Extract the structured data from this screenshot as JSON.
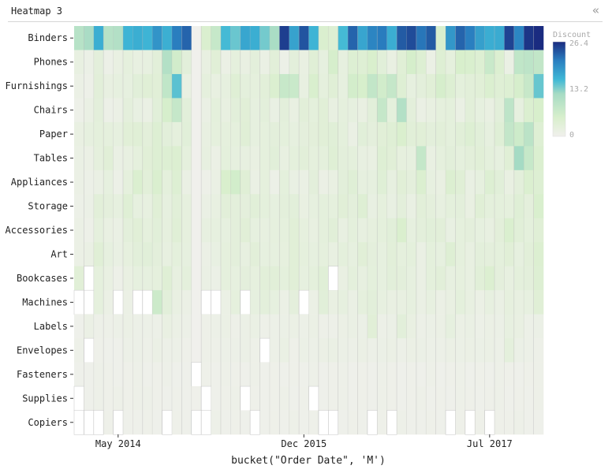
{
  "panel": {
    "title": "Heatmap 3",
    "collapse_icon": "double-chevron-left-icon"
  },
  "chart_data": {
    "type": "heatmap",
    "title": "",
    "xlabel": "bucket(\"Order Date\", 'M')",
    "ylabel": "",
    "y_categories": [
      "Binders",
      "Phones",
      "Furnishings",
      "Chairs",
      "Paper",
      "Tables",
      "Appliances",
      "Storage",
      "Accessories",
      "Art",
      "Bookcases",
      "Machines",
      "Labels",
      "Envelopes",
      "Fasteners",
      "Supplies",
      "Copiers"
    ],
    "x_start": "2014-01",
    "x_end": "2017-12",
    "x_ticks": [
      {
        "label": "May 2014",
        "month": "2014-05"
      },
      {
        "label": "Dec 2015",
        "month": "2015-12"
      },
      {
        "label": "Jul 2017",
        "month": "2017-07"
      }
    ],
    "legend": {
      "title": "Discount",
      "min": 0,
      "mid": 13.2,
      "max": 26.4,
      "tick_labels": [
        "26.4",
        "13.2",
        "0"
      ]
    },
    "colors": {
      "low": "#f0f0ec",
      "mid": "#3fb8d6",
      "high": "#1a2b80",
      "missing": "#ffffff"
    },
    "values": [
      [
        9.6,
        11.4,
        16.8,
        9.6,
        10.1,
        16.2,
        16.8,
        16.2,
        19.2,
        16.7,
        21.2,
        22.8,
        0,
        4.8,
        7.6,
        15.6,
        14.2,
        17.5,
        16.8,
        13.8,
        11.3,
        25.2,
        17.9,
        23.8,
        16.2,
        4.8,
        4.2,
        15.6,
        22.8,
        17.6,
        20.6,
        21.3,
        16.9,
        23.4,
        24.3,
        21.7,
        23.4,
        5.0,
        18.9,
        22.8,
        21.1,
        18.2,
        16.9,
        17.0,
        24.9,
        20.5,
        25.8,
        26.4
      ],
      [
        1.8,
        1.0,
        2.8,
        0.8,
        1.6,
        2.4,
        1.8,
        2.0,
        3.1,
        10.1,
        6.2,
        3.0,
        0,
        1.8,
        3.4,
        1.2,
        2.4,
        1.6,
        2.8,
        1.4,
        3.1,
        0.8,
        2.8,
        1.6,
        3.6,
        2.2,
        5.6,
        2.1,
        4.2,
        3.9,
        5.1,
        3.2,
        1.6,
        3.6,
        5.7,
        4.2,
        1.2,
        3.9,
        2.4,
        5.2,
        5.0,
        4.1,
        7.3,
        4.5,
        1.4,
        8.4,
        8.9,
        8.2
      ],
      [
        1.2,
        0.6,
        3.1,
        1.8,
        2.2,
        2.2,
        3.2,
        3.6,
        3.4,
        8.4,
        14.8,
        1.6,
        0,
        2.4,
        1.8,
        2.2,
        3.8,
        2.6,
        2.4,
        3.1,
        4.6,
        7.5,
        7.2,
        1.8,
        5.0,
        2.4,
        3.6,
        2.1,
        5.9,
        5.4,
        8.2,
        6.2,
        7.8,
        3.9,
        2.2,
        2.8,
        3.4,
        5.6,
        4.1,
        2.6,
        3.1,
        3.4,
        4.7,
        3.8,
        4.2,
        5.5,
        7.5,
        14.3
      ],
      [
        0.6,
        1.4,
        2.8,
        0.9,
        1.2,
        2.7,
        1.7,
        1.4,
        3.2,
        5.6,
        7.8,
        3.0,
        0,
        1.4,
        2.6,
        1.8,
        3.0,
        3.4,
        2.2,
        2.8,
        1.5,
        2.8,
        1.6,
        3.1,
        2.6,
        3.4,
        1.8,
        2.4,
        2.2,
        1.6,
        3.0,
        7.8,
        2.6,
        10.1,
        2.8,
        1.4,
        1.8,
        2.4,
        2.6,
        1.4,
        3.1,
        2.2,
        1.6,
        3.0,
        8.9,
        2.2,
        4.6,
        5.2
      ],
      [
        1.6,
        2.1,
        2.6,
        2.5,
        2.2,
        3.4,
        3.6,
        2.9,
        4.1,
        3.0,
        2.4,
        3.2,
        0,
        1.8,
        2.5,
        2.5,
        2.4,
        3.6,
        2.1,
        2.4,
        2.8,
        2.6,
        2.2,
        2.7,
        2.9,
        3.4,
        3.5,
        2.6,
        1.4,
        3.2,
        2.7,
        3.4,
        3.8,
        4.9,
        3.3,
        3.4,
        2.8,
        3.1,
        2.6,
        3.3,
        4.2,
        3.2,
        2.1,
        3.7,
        8.1,
        6.7,
        9.1,
        4.0
      ],
      [
        1.4,
        1.1,
        2.4,
        3.4,
        1.4,
        1.8,
        2.4,
        3.4,
        4.2,
        4.1,
        4.4,
        2.4,
        0,
        2.0,
        1.1,
        2.6,
        2.1,
        2.0,
        1.6,
        2.4,
        3.2,
        1.8,
        2.6,
        3.1,
        2.5,
        2.6,
        3.8,
        2.8,
        2.6,
        1.8,
        1.6,
        4.0,
        3.4,
        2.3,
        2.2,
        7.9,
        1.6,
        2.4,
        3.0,
        2.5,
        2.9,
        3.4,
        2.6,
        2.2,
        3.6,
        11.9,
        7.6,
        4.7
      ],
      [
        1.2,
        0.8,
        1.3,
        2.1,
        0.9,
        2.5,
        4.6,
        3.1,
        4.8,
        2.6,
        4.1,
        1.3,
        0,
        0.6,
        1.3,
        5.1,
        6.1,
        3.6,
        1.3,
        2.4,
        0.8,
        2.6,
        1.5,
        1.3,
        2.8,
        1.2,
        1.6,
        3.0,
        3.7,
        2.1,
        2.2,
        3.7,
        1.9,
        3.4,
        2.7,
        4.7,
        1.9,
        1.6,
        4.4,
        3.6,
        1.5,
        2.2,
        4.1,
        3.2,
        1.6,
        2.8,
        4.7,
        4.2
      ],
      [
        0.8,
        1.0,
        3.1,
        2.7,
        2.1,
        3.8,
        2.2,
        2.0,
        3.6,
        2.2,
        3.3,
        2.3,
        0,
        1.3,
        1.8,
        3.1,
        2.8,
        2.7,
        3.3,
        2.6,
        2.1,
        2.8,
        3.0,
        1.6,
        2.1,
        2.6,
        2.4,
        3.4,
        2.8,
        4.0,
        1.7,
        2.4,
        1.7,
        2.8,
        1.5,
        3.1,
        2.7,
        1.9,
        2.6,
        2.8,
        1.6,
        3.6,
        2.6,
        2.6,
        2.4,
        3.7,
        2.7,
        5.0
      ],
      [
        1.1,
        0.7,
        2.4,
        1.6,
        1.3,
        2.8,
        3.4,
        2.4,
        3.2,
        2.3,
        3.6,
        2.3,
        0,
        1.9,
        2.1,
        2.2,
        2.8,
        3.4,
        2.1,
        1.9,
        2.3,
        2.4,
        3.4,
        2.3,
        1.8,
        2.6,
        3.3,
        1.8,
        2.6,
        1.9,
        2.3,
        2.6,
        3.2,
        4.9,
        2.1,
        2.8,
        3.2,
        3.1,
        1.7,
        2.5,
        2.7,
        2.2,
        1.8,
        2.9,
        4.8,
        3.3,
        2.6,
        3.6
      ],
      [
        1.2,
        1.4,
        3.6,
        2.1,
        1.5,
        2.3,
        3.0,
        3.2,
        2.8,
        2.0,
        2.6,
        2.1,
        0,
        1.1,
        1.7,
        2.5,
        2.8,
        1.9,
        3.1,
        2.2,
        2.1,
        2.3,
        3.4,
        2.4,
        2.1,
        2.5,
        1.8,
        2.6,
        2.1,
        3.4,
        2.7,
        2.1,
        3.1,
        2.5,
        2.6,
        1.4,
        2.6,
        2.2,
        3.9,
        2.4,
        1.8,
        2.8,
        2.7,
        2.6,
        3.4,
        2.2,
        3.1,
        4.5
      ],
      [
        3.4,
        -1,
        2.5,
        1.6,
        0.6,
        1.6,
        2.1,
        2.2,
        2.4,
        3.8,
        1.9,
        2.6,
        0,
        1.3,
        1.0,
        2.5,
        2.1,
        2.7,
        2.3,
        3.1,
        3.3,
        2.6,
        3.4,
        2.1,
        2.6,
        3.5,
        -1,
        1.6,
        2.6,
        1.9,
        2.6,
        2.2,
        3.0,
        2.8,
        2.1,
        1.4,
        2.6,
        3.1,
        2.0,
        2.3,
        1.8,
        3.3,
        4.4,
        2.7,
        2.0,
        2.6,
        2.8,
        4.1
      ],
      [
        -1,
        -1,
        2.5,
        1.2,
        -1,
        1.2,
        -1,
        -1,
        6.9,
        3.0,
        1.6,
        1.2,
        0,
        -1,
        -1,
        1.2,
        2.5,
        -1,
        2.1,
        2.8,
        2.1,
        1.2,
        2.7,
        -1,
        1.2,
        3.2,
        1.6,
        2.2,
        1.4,
        2.5,
        3.0,
        2.0,
        1.6,
        1.8,
        2.2,
        1.4,
        2.0,
        1.2,
        1.6,
        2.6,
        1.8,
        1.2,
        2.0,
        1.4,
        2.3,
        1.8,
        2.0,
        3.6
      ],
      [
        0.4,
        1.2,
        0.7,
        0.6,
        0.9,
        1.2,
        0.8,
        0.8,
        0.8,
        1.6,
        1.1,
        0.9,
        0,
        0.6,
        0.9,
        1.2,
        0.6,
        1.0,
        1.4,
        0.7,
        0.9,
        1.0,
        1.1,
        0.9,
        1.2,
        0.7,
        0.6,
        1.2,
        1.3,
        1.0,
        3.4,
        0.9,
        1.0,
        3.0,
        1.6,
        0.9,
        1.0,
        1.2,
        2.1,
        1.1,
        1.4,
        0.9,
        1.2,
        1.0,
        2.0,
        1.6,
        0.9,
        1.0
      ],
      [
        0.6,
        -1,
        0.5,
        0.4,
        0.4,
        0.9,
        0.8,
        0.7,
        1.1,
        0.9,
        0.8,
        0.5,
        0,
        0.7,
        0.6,
        0.8,
        0.8,
        1.0,
        0.6,
        -1,
        0.9,
        1.3,
        0.5,
        1.0,
        0.8,
        1.2,
        1.4,
        1.0,
        0.8,
        1.1,
        0.9,
        1.0,
        1.1,
        0.9,
        1.2,
        1.0,
        0.8,
        0.9,
        1.2,
        1.0,
        1.2,
        1.0,
        1.1,
        0.9,
        2.6,
        1.0,
        0.9,
        0.6
      ],
      [
        0.4,
        0.4,
        0.6,
        0.5,
        0.4,
        0.5,
        0.6,
        0.4,
        0.5,
        0.6,
        0.4,
        0.4,
        -1,
        0.5,
        0.4,
        0.6,
        0.5,
        0.4,
        0.6,
        0.4,
        0.5,
        0.4,
        0.5,
        0.4,
        0.6,
        0.4,
        0.5,
        0.6,
        0.4,
        0.5,
        0.4,
        0.6,
        0.5,
        0.4,
        0.5,
        0.4,
        0.6,
        0.4,
        0.5,
        0.6,
        0.4,
        0.5,
        0.4,
        0.6,
        0.5,
        0.4,
        0.5,
        0.6
      ],
      [
        -1,
        0.4,
        0.6,
        0.5,
        0.6,
        0.5,
        0.6,
        0.6,
        0.5,
        0.4,
        0.5,
        0.4,
        0.3,
        -1,
        0.4,
        0.5,
        0.6,
        -1,
        0.5,
        0.4,
        0.5,
        0.6,
        0.4,
        0.5,
        -1,
        0.4,
        0.5,
        0.6,
        0.4,
        0.5,
        0.4,
        0.6,
        0.5,
        0.4,
        0.5,
        0.6,
        0.4,
        0.5,
        0.4,
        0.6,
        0.5,
        0.4,
        0.5,
        0.6,
        0.4,
        0.5,
        0.4,
        0.6
      ],
      [
        -1,
        -1,
        -1,
        0.5,
        -1,
        0.4,
        0.4,
        0.5,
        0.4,
        -1,
        0.5,
        0.4,
        -1,
        -1,
        0.6,
        0.4,
        0.5,
        0.4,
        -1,
        0.4,
        0.5,
        0.4,
        0.6,
        0.4,
        0.5,
        -1,
        -1,
        0.4,
        0.5,
        0.4,
        -1,
        0.5,
        -1,
        0.6,
        0.4,
        0.4,
        0.5,
        0.4,
        -1,
        0.5,
        -1,
        0.5,
        -1,
        0.5,
        0.5,
        0.6,
        0.4,
        0.4
      ]
    ]
  }
}
